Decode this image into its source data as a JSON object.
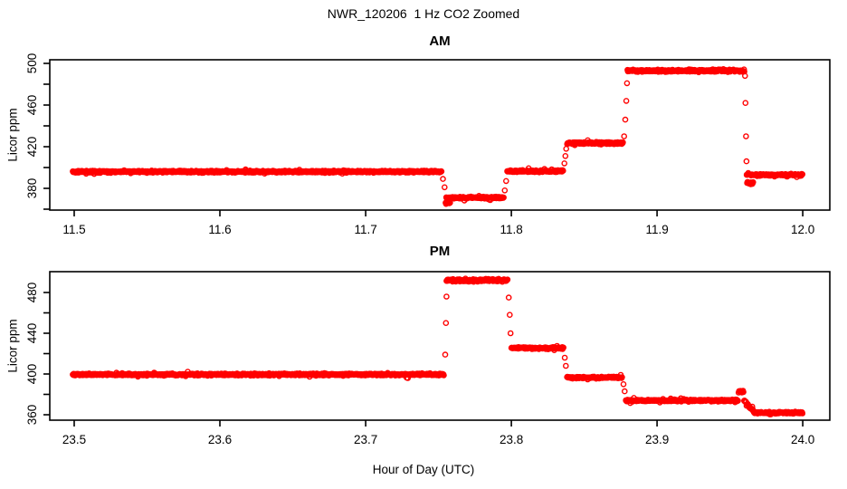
{
  "figure": {
    "title": "NWR_120206  1 Hz CO2 Zoomed",
    "xlabel": "Hour of Day (UTC)",
    "point_color": "#ff0000",
    "axis_color": "#000000",
    "background": "#ffffff"
  },
  "chart_data": [
    {
      "type": "scatter",
      "title": "AM",
      "ylabel": "Licor ppm",
      "marker": "open-circle",
      "sample_rate_hz": 1,
      "grid": false,
      "legend": false,
      "xlim": [
        11.4832,
        12.0186
      ],
      "ylim": [
        359.1,
        503.5
      ],
      "xticks": {
        "values": [
          11.5,
          11.6,
          11.7,
          11.8,
          11.9,
          12.0
        ],
        "labels": [
          "11.5",
          "11.6",
          "11.7",
          "11.8",
          "11.9",
          "12.0"
        ]
      },
      "yticks": {
        "major": {
          "values": [
            380,
            420,
            460,
            500
          ],
          "labels": [
            "380",
            "420",
            "460",
            "500"
          ]
        },
        "minor": [
          360,
          400,
          440,
          480
        ]
      },
      "segments": [
        {
          "t0": 11.499,
          "t1": 11.7523,
          "ppm": 396.0,
          "noise": 0.9
        },
        {
          "t0": 11.7549,
          "t1": 11.758,
          "ppm": 366.0,
          "noise": 1.1
        },
        {
          "t0": 11.7553,
          "t1": 11.795,
          "ppm": 371.0,
          "noise": 0.9
        },
        {
          "t0": 11.7972,
          "t1": 11.8357,
          "ppm": 396.5,
          "noise": 0.9
        },
        {
          "t0": 11.8383,
          "t1": 11.8768,
          "ppm": 423.5,
          "noise": 0.9
        },
        {
          "t0": 11.8797,
          "t1": 11.9602,
          "ppm": 493.0,
          "noise": 1.1
        },
        {
          "t0": 11.9615,
          "t1": 12.0,
          "ppm": 393.0,
          "noise": 0.9
        },
        {
          "t0": 11.9618,
          "t1": 11.9662,
          "ppm": 385.0,
          "noise": 1.1
        }
      ],
      "transition_points": [
        [
          11.7531,
          389
        ],
        [
          11.7542,
          381
        ],
        [
          11.7955,
          378
        ],
        [
          11.7964,
          387
        ],
        [
          11.8364,
          404
        ],
        [
          11.8371,
          411
        ],
        [
          11.8377,
          418
        ],
        [
          11.8774,
          430
        ],
        [
          11.8782,
          446
        ],
        [
          11.8789,
          464
        ],
        [
          11.8794,
          481
        ],
        [
          11.9604,
          488
        ],
        [
          11.9607,
          462
        ],
        [
          11.9611,
          430
        ],
        [
          11.9614,
          406
        ]
      ]
    },
    {
      "type": "scatter",
      "title": "PM",
      "ylabel": "Licor ppm",
      "marker": "open-circle",
      "sample_rate_hz": 1,
      "grid": false,
      "legend": false,
      "xlim": [
        23.4832,
        24.0186
      ],
      "ylim": [
        354.7,
        500.4
      ],
      "xticks": {
        "values": [
          23.5,
          23.6,
          23.7,
          23.8,
          23.9,
          24.0
        ],
        "labels": [
          "23.5",
          "23.6",
          "23.7",
          "23.8",
          "23.9",
          "24.0"
        ]
      },
      "yticks": {
        "major": {
          "values": [
            360,
            400,
            440,
            480
          ],
          "labels": [
            "360",
            "400",
            "440",
            "480"
          ]
        },
        "minor": [
          380,
          420,
          460
        ]
      },
      "segments": [
        {
          "t0": 23.499,
          "t1": 23.754,
          "ppm": 399.5,
          "noise": 0.9
        },
        {
          "t0": 23.7555,
          "t1": 23.7975,
          "ppm": 492.0,
          "noise": 1.2
        },
        {
          "t0": 23.8,
          "t1": 23.836,
          "ppm": 425.5,
          "noise": 0.9
        },
        {
          "t0": 23.8382,
          "t1": 23.8762,
          "ppm": 396.5,
          "noise": 0.9
        },
        {
          "t0": 23.8786,
          "t1": 23.9557,
          "ppm": 374.0,
          "noise": 0.9
        },
        {
          "t0": 23.956,
          "t1": 23.9596,
          "ppm": 383.0,
          "noise": 1.3
        },
        {
          "t0": 23.9598,
          "t1": 23.9668,
          "ppm0": 374.0,
          "ppm1": 362.5,
          "noise": 1.0
        },
        {
          "t0": 23.9668,
          "t1": 24.0,
          "ppm": 362.0,
          "noise": 0.8
        }
      ],
      "transition_points": [
        [
          23.7546,
          419
        ],
        [
          23.7551,
          450
        ],
        [
          23.7555,
          476
        ],
        [
          23.7982,
          475
        ],
        [
          23.7989,
          458
        ],
        [
          23.7995,
          440
        ],
        [
          23.8367,
          416
        ],
        [
          23.8374,
          408
        ],
        [
          23.877,
          390
        ],
        [
          23.8778,
          383
        ]
      ]
    }
  ]
}
